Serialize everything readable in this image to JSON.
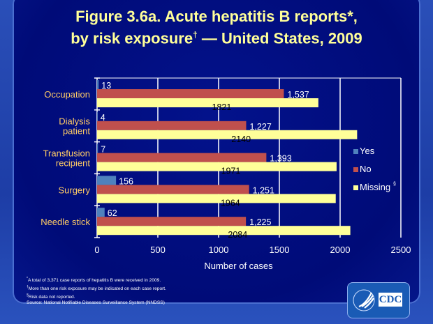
{
  "title": {
    "line1": "Figure 3.6a. Acute hepatitis B reports*,",
    "line2_pre": "by risk exposure",
    "line2_mark": "†",
    "line2_post": " — United States, 2009"
  },
  "chart_data": {
    "type": "bar",
    "orientation": "horizontal",
    "categories": [
      "Occupation",
      "Dialysis patient",
      "Transfusion recipient",
      "Surgery",
      "Needle stick"
    ],
    "series": [
      {
        "name": "Yes",
        "color": "#4f81bd",
        "values": [
          13,
          4,
          7,
          156,
          62
        ],
        "labels": [
          "13",
          "4",
          "7",
          "156",
          "62"
        ]
      },
      {
        "name": "No",
        "color": "#c0504d",
        "values": [
          1537,
          1227,
          1393,
          1251,
          1225
        ],
        "labels": [
          "1,537",
          "1,227",
          "1,393",
          "1,251",
          "1,225"
        ]
      },
      {
        "name": "Missing",
        "name_mark": "§",
        "color": "#ffff99",
        "values": [
          1821,
          2140,
          1971,
          1964,
          2084
        ],
        "labels": [
          "1821",
          "2140",
          "1971",
          "1964",
          "2084"
        ]
      }
    ],
    "xlabel": "Number of cases",
    "xlim": [
      0,
      2500
    ],
    "xticks": [
      0,
      500,
      1000,
      1500,
      2000,
      2500
    ],
    "grid": true,
    "legend": "right"
  },
  "footnotes": [
    {
      "mark": "*",
      "text": "A total of 3,371 case reports of hepatitis B were received in 2009."
    },
    {
      "mark": "†",
      "text": "More than one risk exposure may be indicated on each case report."
    },
    {
      "mark": "§",
      "text": "Risk data not reported."
    },
    {
      "mark": "",
      "text": "Source: National Notifiable Diseases Surveillance System (NNDSS)"
    }
  ],
  "logo": {
    "text": "CDC"
  }
}
